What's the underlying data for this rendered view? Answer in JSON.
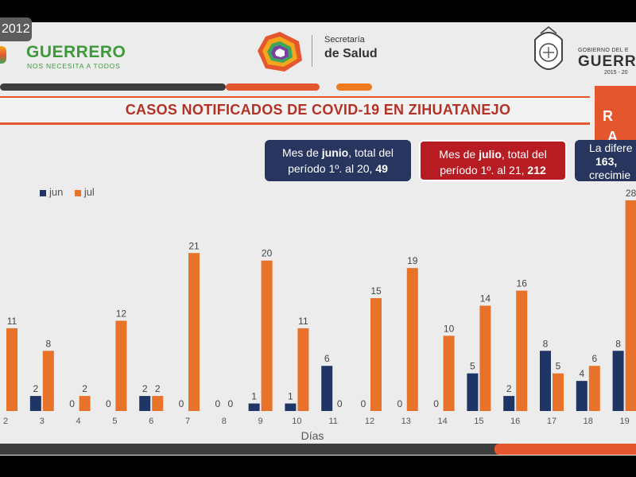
{
  "badge": "2012",
  "header": {
    "left_logo_name": "GUERRERO",
    "left_logo_tagline": "NOS NECESITA A TODOS",
    "center_logo_line1": "Secretaría",
    "center_logo_line2": "de Salud",
    "right_logo_line1": "GOBIERNO DEL E",
    "right_logo_line2": "GUERR",
    "right_logo_line3": "2015 - 20"
  },
  "title": "CASOS NOTIFICADOS DE COVID-19 EN ZIHUATANEJO",
  "side_box": {
    "line1": "R",
    "line2": "A"
  },
  "callouts": {
    "june": {
      "pre": "Mes de ",
      "month": "junio",
      "mid": ", total del",
      "line2": "período 1º. al 20, ",
      "total": "49"
    },
    "july": {
      "pre": "Mes de ",
      "month": "julio",
      "mid": ", total del",
      "line2": "período 1º. al 21, ",
      "total": "212"
    },
    "diff": {
      "line1": "La difere",
      "line2": "163,",
      "line3": "crecimie"
    }
  },
  "colors": {
    "jun": "#1f3566",
    "jul": "#e8722a",
    "title": "#b23325",
    "accent": "#e4572e"
  },
  "chart_data": {
    "type": "bar",
    "categories": [
      "2",
      "3",
      "4",
      "5",
      "6",
      "7",
      "8",
      "9",
      "10",
      "11",
      "12",
      "13",
      "14",
      "15",
      "16",
      "17",
      "18",
      "19"
    ],
    "series": [
      {
        "name": "jun",
        "values": [
          null,
          2,
          0,
          0,
          2,
          0,
          0,
          1,
          1,
          6,
          0,
          0,
          0,
          5,
          2,
          8,
          4,
          8
        ]
      },
      {
        "name": "jul",
        "values": [
          11,
          8,
          2,
          12,
          2,
          21,
          0,
          20,
          11,
          0,
          15,
          19,
          10,
          14,
          16,
          5,
          6,
          28
        ]
      }
    ],
    "xlabel": "Días",
    "ylabel": "",
    "ylim": [
      0,
      28
    ],
    "legend": "top-left"
  }
}
